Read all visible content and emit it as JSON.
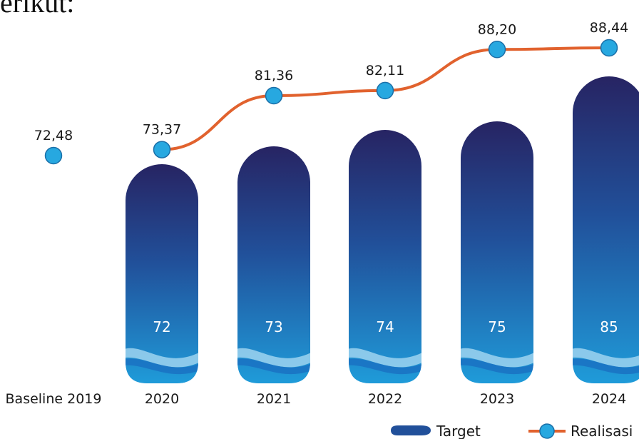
{
  "page": {
    "clipped_text": "erikut:"
  },
  "chart_data": {
    "type": "bar",
    "categories": [
      "Baseline 2019",
      "2020",
      "2021",
      "2022",
      "2023",
      "2024"
    ],
    "series": [
      {
        "name": "Target",
        "type": "bar",
        "values": [
          null,
          72,
          73,
          74,
          75,
          85
        ]
      },
      {
        "name": "Realisasi",
        "type": "line",
        "values": [
          72.48,
          73.37,
          81.36,
          82.11,
          88.2,
          88.44
        ]
      }
    ],
    "data_labels": {
      "Target": [
        "",
        "72",
        "73",
        "74",
        "75",
        "85"
      ],
      "Realisasi": [
        "72,48",
        "73,37",
        "81,36",
        "82,11",
        "88,20",
        "88,44"
      ]
    },
    "legend": {
      "placement": "bottom-right",
      "entries": [
        "Target",
        "Realisasi"
      ]
    },
    "grid": false,
    "colors": {
      "bar_top": "#272463",
      "bar_mid": "#21509a",
      "bar_bottom": "#1f9bd9",
      "wave_light": "#9fd4f0",
      "wave_dark": "#1a73c3",
      "line": "#e1622e",
      "marker": "#27a8e0",
      "marker_stroke": "#1a6fa8",
      "text": "#1a1a1a"
    }
  }
}
